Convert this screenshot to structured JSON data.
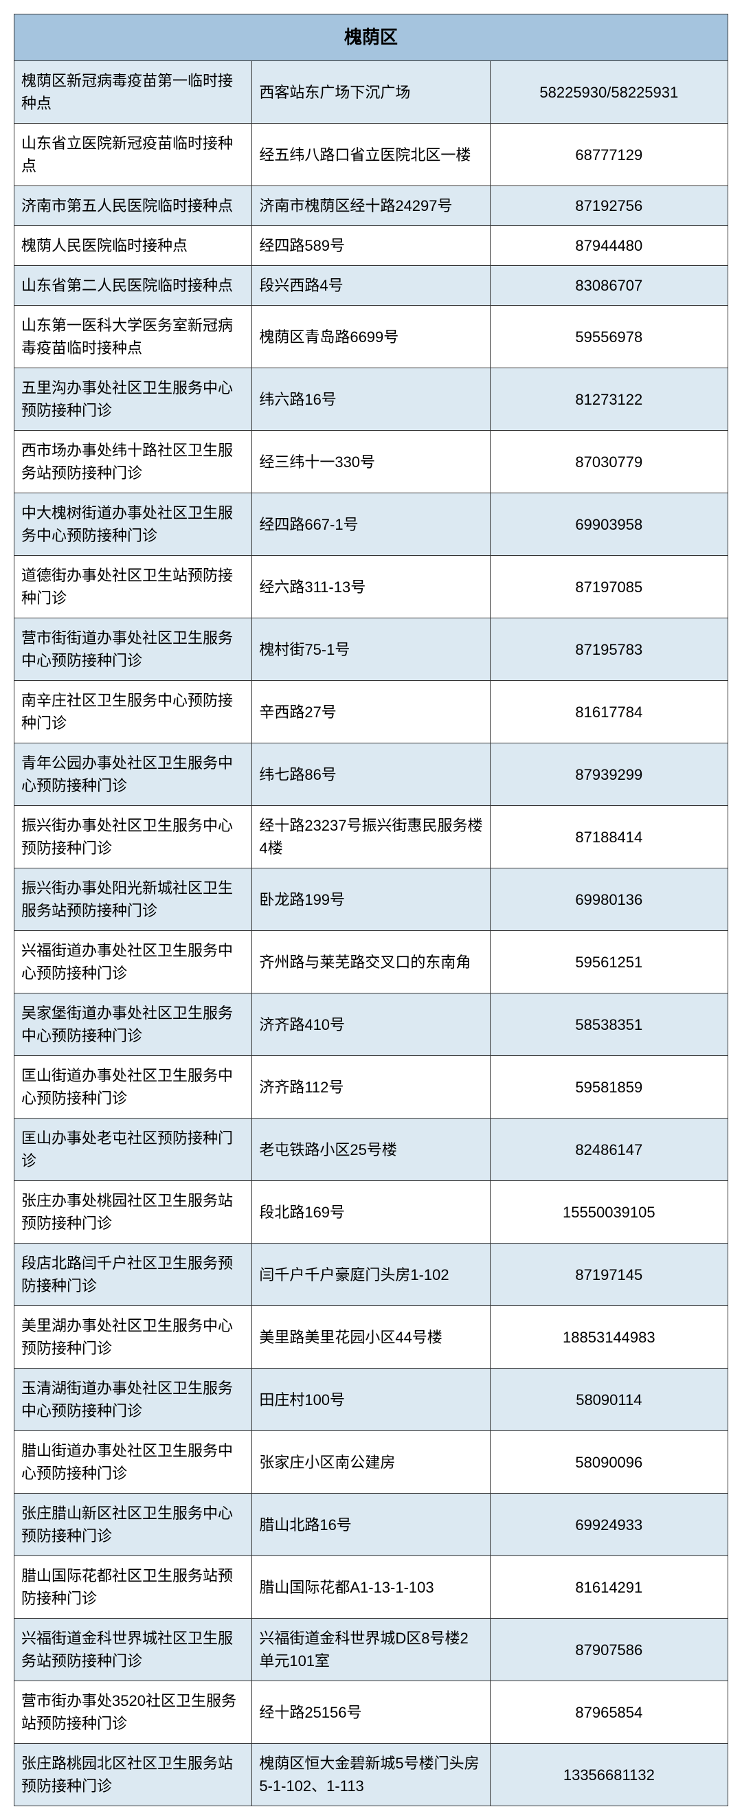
{
  "header": {
    "title": "槐荫区"
  },
  "table": {
    "columns": [
      "name",
      "address",
      "phone"
    ],
    "rows": [
      {
        "name": "槐荫区新冠病毒疫苗第一临时接种点",
        "address": "西客站东广场下沉广场",
        "phone": "58225930/58225931"
      },
      {
        "name": "山东省立医院新冠疫苗临时接种点",
        "address": "经五纬八路口省立医院北区一楼",
        "phone": "68777129"
      },
      {
        "name": "济南市第五人民医院临时接种点",
        "address": "济南市槐荫区经十路24297号",
        "phone": "87192756"
      },
      {
        "name": "槐荫人民医院临时接种点",
        "address": "经四路589号",
        "phone": "87944480"
      },
      {
        "name": "山东省第二人民医院临时接种点",
        "address": "段兴西路4号",
        "phone": "83086707"
      },
      {
        "name": "山东第一医科大学医务室新冠病毒疫苗临时接种点",
        "address": "槐荫区青岛路6699号",
        "phone": "59556978"
      },
      {
        "name": "五里沟办事处社区卫生服务中心预防接种门诊",
        "address": "纬六路16号",
        "phone": "81273122"
      },
      {
        "name": "西市场办事处纬十路社区卫生服务站预防接种门诊",
        "address": "经三纬十一330号",
        "phone": "87030779"
      },
      {
        "name": "中大槐树街道办事处社区卫生服务中心预防接种门诊",
        "address": "经四路667-1号",
        "phone": "69903958"
      },
      {
        "name": "道德街办事处社区卫生站预防接种门诊",
        "address": "经六路311-13号",
        "phone": "87197085"
      },
      {
        "name": "营市街街道办事处社区卫生服务中心预防接种门诊",
        "address": "槐村街75-1号",
        "phone": "87195783"
      },
      {
        "name": "南辛庄社区卫生服务中心预防接种门诊",
        "address": "辛西路27号",
        "phone": "81617784"
      },
      {
        "name": "青年公园办事处社区卫生服务中心预防接种门诊",
        "address": "纬七路86号",
        "phone": "87939299"
      },
      {
        "name": "振兴街办事处社区卫生服务中心预防接种门诊",
        "address": "经十路23237号振兴街惠民服务楼4楼",
        "phone": "87188414"
      },
      {
        "name": "振兴街办事处阳光新城社区卫生服务站预防接种门诊",
        "address": "卧龙路199号",
        "phone": "69980136"
      },
      {
        "name": "兴福街道办事处社区卫生服务中心预防接种门诊",
        "address": "齐州路与莱芜路交叉口的东南角",
        "phone": "59561251"
      },
      {
        "name": "吴家堡街道办事处社区卫生服务中心预防接种门诊",
        "address": "济齐路410号",
        "phone": "58538351"
      },
      {
        "name": "匡山街道办事处社区卫生服务中心预防接种门诊",
        "address": "济齐路112号",
        "phone": "59581859"
      },
      {
        "name": "匡山办事处老屯社区预防接种门诊",
        "address": "老屯铁路小区25号楼",
        "phone": "82486147"
      },
      {
        "name": "张庄办事处桃园社区卫生服务站预防接种门诊",
        "address": "段北路169号",
        "phone": "15550039105"
      },
      {
        "name": "段店北路闫千户社区卫生服务预防接种门诊",
        "address": "闫千户千户豪庭门头房1-102",
        "phone": "87197145"
      },
      {
        "name": "美里湖办事处社区卫生服务中心预防接种门诊",
        "address": "美里路美里花园小区44号楼",
        "phone": "18853144983"
      },
      {
        "name": "玉清湖街道办事处社区卫生服务中心预防接种门诊",
        "address": "田庄村100号",
        "phone": "58090114"
      },
      {
        "name": "腊山街道办事处社区卫生服务中心预防接种门诊",
        "address": "张家庄小区南公建房",
        "phone": "58090096"
      },
      {
        "name": "张庄腊山新区社区卫生服务中心预防接种门诊",
        "address": "腊山北路16号",
        "phone": "69924933"
      },
      {
        "name": "腊山国际花都社区卫生服务站预防接种门诊",
        "address": "腊山国际花都A1-13-1-103",
        "phone": "81614291"
      },
      {
        "name": "兴福街道金科世界城社区卫生服务站预防接种门诊",
        "address": "兴福街道金科世界城D区8号楼2单元101室",
        "phone": "87907586"
      },
      {
        "name": "营市街办事处3520社区卫生服务站预防接种门诊",
        "address": "经十路25156号",
        "phone": "87965854"
      },
      {
        "name": "张庄路桃园北区社区卫生服务站预防接种门诊",
        "address": "槐荫区恒大金碧新城5号楼门头房5-1-102、1-113",
        "phone": "13356681132"
      }
    ]
  },
  "styling": {
    "header_bg": "#a5c4de",
    "even_row_bg": "#dce9f2",
    "odd_row_bg": "#ffffff",
    "border_color": "#333333",
    "font_family": "Microsoft YaHei",
    "header_fontsize": 26,
    "cell_fontsize": 22
  }
}
